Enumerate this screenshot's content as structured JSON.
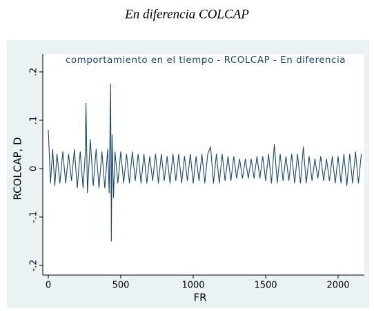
{
  "header": {
    "title": "En diferencia COLCAP"
  },
  "chart_data": {
    "type": "line",
    "title": "comportamiento en el tiempo - RCOLCAP - En diferencia",
    "x_label": "FR",
    "y_label": "RCOLCAP, D",
    "color": "#1a476f",
    "x": [
      0,
      15,
      30,
      45,
      60,
      80,
      100,
      120,
      140,
      160,
      180,
      200,
      220,
      240,
      255,
      260,
      270,
      290,
      310,
      330,
      350,
      370,
      390,
      410,
      420,
      430,
      435,
      440,
      450,
      460,
      480,
      500,
      520,
      540,
      560,
      580,
      600,
      620,
      640,
      660,
      680,
      700,
      720,
      740,
      760,
      780,
      800,
      820,
      840,
      860,
      880,
      900,
      920,
      940,
      960,
      980,
      1000,
      1020,
      1040,
      1060,
      1080,
      1100,
      1120,
      1140,
      1160,
      1180,
      1200,
      1220,
      1240,
      1260,
      1280,
      1300,
      1320,
      1340,
      1360,
      1380,
      1400,
      1420,
      1440,
      1460,
      1480,
      1500,
      1520,
      1540,
      1560,
      1580,
      1600,
      1620,
      1640,
      1660,
      1680,
      1700,
      1720,
      1740,
      1760,
      1780,
      1800,
      1820,
      1840,
      1860,
      1880,
      1900,
      1920,
      1940,
      1960,
      1980,
      2000,
      2020,
      2040,
      2060,
      2080,
      2100,
      2120,
      2140,
      2160
    ],
    "values": [
      0.08,
      -0.03,
      0.04,
      -0.035,
      0.03,
      -0.03,
      0.035,
      -0.03,
      0.03,
      -0.025,
      0.04,
      -0.04,
      0.035,
      -0.04,
      0.03,
      0.135,
      -0.05,
      0.06,
      -0.035,
      0.04,
      -0.04,
      0.035,
      -0.04,
      0.04,
      -0.05,
      0.175,
      -0.15,
      0.07,
      -0.06,
      0.035,
      -0.03,
      0.035,
      -0.03,
      0.03,
      -0.03,
      0.035,
      -0.025,
      0.03,
      -0.03,
      0.03,
      -0.03,
      0.025,
      -0.025,
      0.03,
      -0.03,
      0.03,
      -0.025,
      0.025,
      -0.03,
      0.03,
      -0.025,
      0.03,
      -0.03,
      0.025,
      -0.025,
      0.03,
      -0.03,
      0.025,
      -0.025,
      0.03,
      -0.03,
      0.03,
      0.045,
      -0.03,
      0.03,
      -0.03,
      0.03,
      -0.025,
      0.025,
      -0.025,
      0.025,
      -0.02,
      0.02,
      -0.02,
      0.02,
      -0.02,
      0.02,
      -0.02,
      0.025,
      -0.02,
      0.025,
      -0.025,
      0.03,
      -0.03,
      0.05,
      -0.03,
      0.03,
      -0.025,
      0.025,
      -0.025,
      0.03,
      -0.03,
      0.03,
      -0.03,
      0.045,
      -0.03,
      0.025,
      -0.025,
      0.02,
      -0.02,
      0.025,
      -0.025,
      0.02,
      -0.025,
      0.025,
      -0.03,
      0.025,
      -0.03,
      0.03,
      -0.035,
      0.03,
      -0.03,
      0.035,
      -0.03,
      0.03
    ],
    "xlim": [
      0,
      2000
    ],
    "xticks": [
      0,
      500,
      1000,
      1500,
      2000
    ],
    "ylim": [
      -0.2,
      0.2
    ],
    "yticks": [
      {
        "value": -0.2,
        "label": "-.2"
      },
      {
        "value": -0.1,
        "label": "-.1"
      },
      0,
      {
        "value": 0.1,
        "label": ".1"
      },
      {
        "value": 0.2,
        "label": ".2"
      }
    ]
  }
}
